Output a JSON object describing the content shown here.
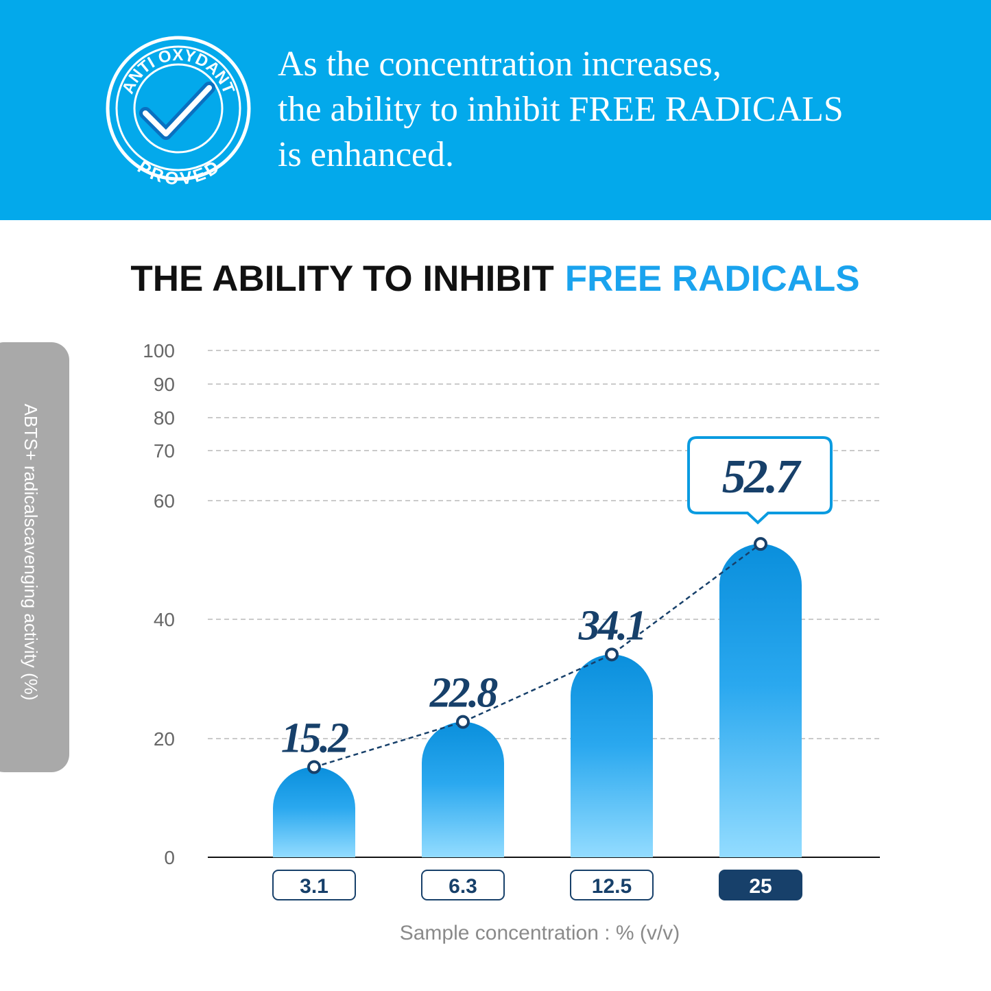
{
  "header": {
    "lines": [
      "As the concentration increases,",
      "the ability to inhibit FREE RADICALS",
      "is enhanced."
    ],
    "badge": {
      "top": "ANTI OXYDANT",
      "bottom": "PROVED"
    }
  },
  "chart_data": {
    "type": "bar",
    "title": "THE ABILITY TO INHIBIT",
    "title_highlight": "FREE RADICALS",
    "x_label": "Sample concentration : % (v/v)",
    "y_label": "ABTS+ radicalscavenging activity (%)",
    "categories": [
      "3.1",
      "6.3",
      "12.5",
      "25"
    ],
    "values": [
      15.2,
      22.8,
      34.1,
      52.7
    ],
    "color": "#0a8fdc",
    "line_color": "#17406a",
    "highlight_index": 3,
    "ylim": [
      0,
      100
    ],
    "yticks": [
      0,
      20,
      40,
      60,
      70,
      80,
      90,
      100
    ],
    "grid": true
  }
}
